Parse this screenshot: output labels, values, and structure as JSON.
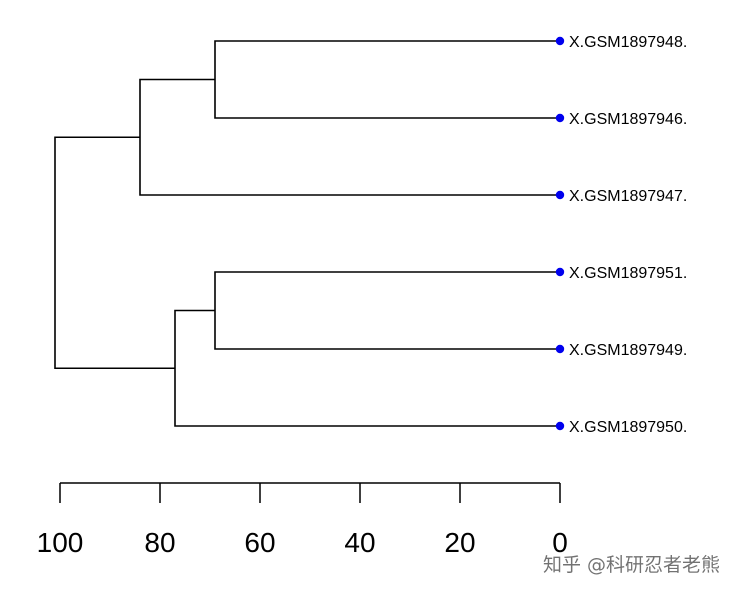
{
  "dendrogram": {
    "leaves": [
      {
        "label": "X.GSM1897948."
      },
      {
        "label": "X.GSM1897946."
      },
      {
        "label": "X.GSM1897947."
      },
      {
        "label": "X.GSM1897951."
      },
      {
        "label": "X.GSM1897949."
      },
      {
        "label": "X.GSM1897950."
      }
    ],
    "merges": [
      {
        "left": 0,
        "right": 1,
        "height": 69
      },
      {
        "left": -1,
        "right": 2,
        "height": 84
      },
      {
        "left": 3,
        "right": 4,
        "height": 69
      },
      {
        "left": -3,
        "right": 5,
        "height": 77
      },
      {
        "left": -2,
        "right": -4,
        "height": 101
      }
    ],
    "axis": {
      "ticks": [
        100,
        80,
        60,
        40,
        20,
        0
      ],
      "range": [
        101,
        0
      ],
      "direction": "decreasing left to right"
    },
    "colors": {
      "lines": "#000000",
      "leaf_points": "#0000ee"
    }
  },
  "watermark": {
    "text": "知乎 @科研忍者老熊"
  }
}
